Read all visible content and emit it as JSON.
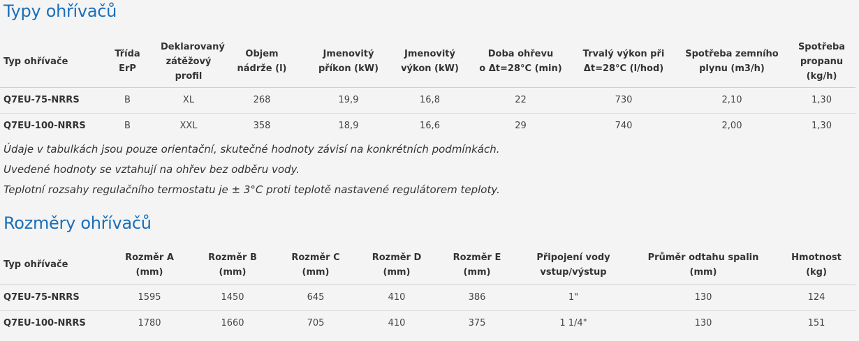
{
  "types_section": {
    "title": "Typy ohřívačů",
    "headers": [
      [
        "Typ ohřívače"
      ],
      [
        "Třída",
        "ErP"
      ],
      [
        "Deklarovaný",
        "zátěžový",
        "profil"
      ],
      [
        "Objem",
        "nádrže (l)"
      ],
      [
        "Jmenovitý",
        "příkon (kW)"
      ],
      [
        "Jmenovitý",
        "výkon (kW)"
      ],
      [
        "Doba ohřevu",
        "o Δt=28°C (min)"
      ],
      [
        "Trvalý výkon při",
        "Δt=28°C (l/hod)"
      ],
      [
        "Spotřeba zemního",
        "plynu (m3/h)"
      ],
      [
        "Spotřeba",
        "propanu",
        "(kg/h)"
      ]
    ],
    "rows": [
      [
        "Q7EU-75-NRRS",
        "B",
        "XL",
        "268",
        "19,9",
        "16,8",
        "22",
        "730",
        "2,10",
        "1,30"
      ],
      [
        "Q7EU-100-NRRS",
        "B",
        "XXL",
        "358",
        "18,9",
        "16,6",
        "29",
        "740",
        "2,00",
        "1,30"
      ]
    ]
  },
  "notes": [
    "Údaje v tabulkách jsou pouze orientační, skutečné hodnoty závisí na konkrétních podmínkách.",
    "Uvedené hodnoty se vztahují na ohřev bez odběru vody.",
    "Teplotní rozsahy regulačního termostatu je ± 3°C proti teplotě nastavené regulátorem teploty."
  ],
  "dims_section": {
    "title": "Rozměry ohřívačů",
    "headers": [
      [
        "Typ ohřívače"
      ],
      [
        "Rozměr A",
        "(mm)"
      ],
      [
        "Rozměr B",
        "(mm)"
      ],
      [
        "Rozměr C",
        "(mm)"
      ],
      [
        "Rozměr D",
        "(mm)"
      ],
      [
        "Rozměr E",
        "(mm)"
      ],
      [
        "Připojení vody",
        "vstup/výstup"
      ],
      [
        "Průměr odtahu spalin",
        "(mm)"
      ],
      [
        "Hmotnost",
        "(kg)"
      ]
    ],
    "rows": [
      [
        "Q7EU-75-NRRS",
        "1595",
        "1450",
        "645",
        "410",
        "386",
        "1\"",
        "130",
        "124"
      ],
      [
        "Q7EU-100-NRRS",
        "1780",
        "1660",
        "705",
        "410",
        "375",
        "1 1/4\"",
        "130",
        "151"
      ]
    ]
  },
  "colors": {
    "title": "#1a6fb9",
    "text": "#333333",
    "background": "#f4f4f4"
  }
}
